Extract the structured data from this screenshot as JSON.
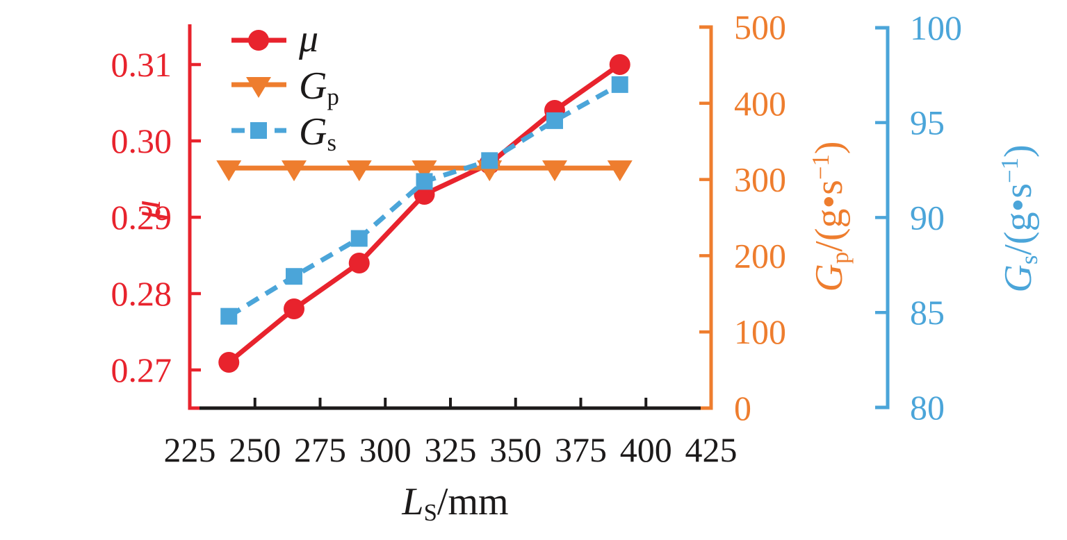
{
  "figure": {
    "background": "#ffffff"
  },
  "colors": {
    "mu_red": "#e8232d",
    "gp_orange": "#ee7d2e",
    "gs_blue": "#4ba5d9",
    "text_black": "#1c1a1a"
  },
  "chart_data": {
    "type": "line",
    "title": "",
    "x": {
      "label": "LS/mm",
      "label_segments": [
        {
          "t": "L",
          "s": "i"
        },
        {
          "t": "S",
          "s": "sub"
        },
        {
          "t": "/mm",
          "s": ""
        }
      ],
      "values": [
        240,
        265,
        290,
        315,
        340,
        365,
        390
      ],
      "axis_range": [
        225,
        425
      ],
      "tick_labels": [
        "225",
        "250",
        "275",
        "300",
        "325",
        "350",
        "375",
        "400",
        "425"
      ],
      "inner_tick_values": [
        250,
        275,
        300,
        325,
        350,
        375,
        400
      ]
    },
    "series": [
      {
        "id": "mu",
        "name": "μ",
        "label_segments": [
          {
            "t": "μ",
            "s": "i"
          }
        ],
        "axis": "left",
        "color": "#e8232d",
        "marker": "circle",
        "line_style": "solid",
        "values": [
          0.271,
          0.278,
          0.284,
          0.293,
          0.297,
          0.304,
          0.31
        ]
      },
      {
        "id": "gp",
        "name": "Gp",
        "label_segments": [
          {
            "t": "G",
            "s": "i"
          },
          {
            "t": "p",
            "s": "sub"
          }
        ],
        "axis": "right_gp",
        "color": "#ee7d2e",
        "marker": "triangle-down",
        "line_style": "solid",
        "values": [
          315,
          315,
          315,
          315,
          315,
          315,
          315
        ]
      },
      {
        "id": "gs",
        "name": "Gs",
        "label_segments": [
          {
            "t": "G",
            "s": "i"
          },
          {
            "t": "s",
            "s": "sub"
          }
        ],
        "axis": "right_gs",
        "color": "#4ba5d9",
        "marker": "square",
        "line_style": "dashed",
        "values": [
          84.8,
          86.9,
          88.9,
          91.9,
          93.0,
          95.1,
          97.0
        ]
      }
    ],
    "axes": {
      "left": {
        "label": "μ",
        "label_segments": [
          {
            "t": "μ",
            "s": "i"
          }
        ],
        "range": [
          0.27,
          0.31
        ],
        "tick_labels": [
          "0.27",
          "0.28",
          "0.29",
          "0.30",
          "0.31"
        ],
        "tick_values": [
          0.27,
          0.28,
          0.29,
          0.3,
          0.31
        ],
        "color": "#e8232d"
      },
      "right_gp": {
        "label": "Gp/(g·s⁻¹)",
        "label_segments": [
          {
            "t": "G",
            "s": "i"
          },
          {
            "t": "p",
            "s": "sub"
          },
          {
            "t": "/(g",
            "s": ""
          },
          {
            "t": "•",
            "s": ""
          },
          {
            "t": "s",
            "s": ""
          },
          {
            "t": "−1",
            "s": "sup"
          },
          {
            "t": ")",
            "s": ""
          }
        ],
        "range": [
          0,
          500
        ],
        "tick_labels": [
          "0",
          "100",
          "200",
          "300",
          "400",
          "500"
        ],
        "tick_values": [
          0,
          100,
          200,
          300,
          400,
          500
        ],
        "color": "#ee7d2e"
      },
      "right_gs": {
        "label": "Gs/(g·s⁻¹)",
        "label_segments": [
          {
            "t": "G",
            "s": "i"
          },
          {
            "t": "s",
            "s": "sub"
          },
          {
            "t": "/(g",
            "s": ""
          },
          {
            "t": "•",
            "s": ""
          },
          {
            "t": "s",
            "s": ""
          },
          {
            "t": "−1",
            "s": "sup"
          },
          {
            "t": ")",
            "s": ""
          }
        ],
        "range": [
          80,
          100
        ],
        "tick_labels": [
          "80",
          "85",
          "90",
          "95",
          "100"
        ],
        "tick_values": [
          80,
          85,
          90,
          95,
          100
        ],
        "color": "#4ba5d9"
      }
    },
    "legend": {
      "position": "top-left-inside",
      "items": [
        {
          "series": "mu",
          "label_segments": [
            {
              "t": "μ",
              "s": "i"
            }
          ]
        },
        {
          "series": "gp",
          "label_segments": [
            {
              "t": "G",
              "s": "i"
            },
            {
              "t": "p",
              "s": "sub"
            }
          ]
        },
        {
          "series": "gs",
          "label_segments": [
            {
              "t": "G",
              "s": "i"
            },
            {
              "t": "s",
              "s": "sub"
            }
          ]
        }
      ]
    },
    "grid": false
  }
}
